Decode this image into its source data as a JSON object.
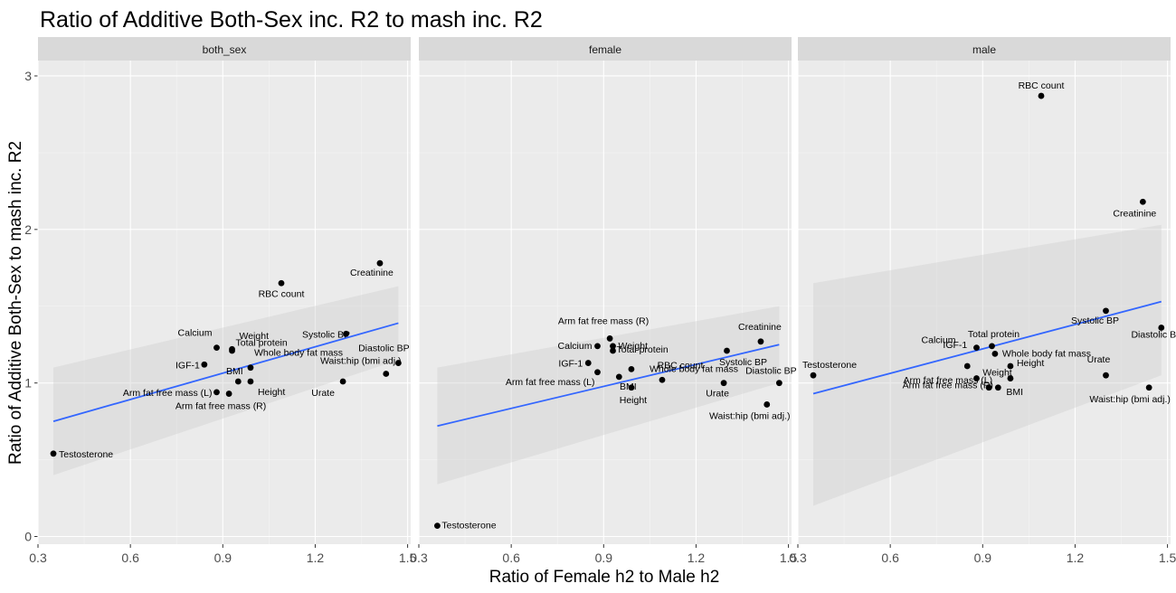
{
  "chart_data": {
    "type": "scatter",
    "title": "Ratio of Additive Both-Sex inc. R2 to mash inc. R2",
    "xlabel": "Ratio of Female h2 to Male h2",
    "ylabel": "Ratio of Additive Both-Sex to mash inc. R2",
    "xlim": [
      0.3,
      1.51
    ],
    "ylim": [
      -0.05,
      3.1
    ],
    "x_ticks": [
      0.3,
      0.6,
      0.9,
      1.2,
      1.5
    ],
    "x_tick_labels": [
      "0.3",
      "0.6",
      "0.9",
      "1.2",
      "1.5"
    ],
    "y_ticks": [
      0,
      1,
      2,
      3
    ],
    "y_tick_labels": [
      "0",
      "1",
      "2",
      "3"
    ],
    "grid": true,
    "legend": "none",
    "point_color": "#000000",
    "smooth_color": "#3366ff",
    "band_color": "#cccccc",
    "facets": [
      {
        "label": "both_sex",
        "points": [
          {
            "name": "Testosterone",
            "x": 0.35,
            "y": 0.54
          },
          {
            "name": "Arm fat free mass (L)",
            "x": 0.88,
            "y": 0.94
          },
          {
            "name": "Arm fat free mass (R)",
            "x": 0.92,
            "y": 0.93
          },
          {
            "name": "BMI",
            "x": 0.95,
            "y": 1.01
          },
          {
            "name": "Height",
            "x": 0.99,
            "y": 1.01
          },
          {
            "name": "IGF-1",
            "x": 0.84,
            "y": 1.12
          },
          {
            "name": "Calcium",
            "x": 0.88,
            "y": 1.23
          },
          {
            "name": "Total protein",
            "x": 0.93,
            "y": 1.22
          },
          {
            "name": "Weight",
            "x": 0.93,
            "y": 1.21
          },
          {
            "name": "Whole body fat mass",
            "x": 0.99,
            "y": 1.1
          },
          {
            "name": "RBC count",
            "x": 1.09,
            "y": 1.65
          },
          {
            "name": "Creatinine",
            "x": 1.41,
            "y": 1.78
          },
          {
            "name": "Systolic BP",
            "x": 1.3,
            "y": 1.32
          },
          {
            "name": "Urate",
            "x": 1.29,
            "y": 1.01
          },
          {
            "name": "Waist:hip (bmi adj.)",
            "x": 1.43,
            "y": 1.06
          },
          {
            "name": "Diastolic BP",
            "x": 1.47,
            "y": 1.13
          }
        ],
        "smooth": {
          "x": [
            0.35,
            1.47
          ],
          "y": [
            0.75,
            1.39
          ],
          "band_lo": [
            0.4,
            1.15
          ],
          "band_hi": [
            1.1,
            1.63
          ]
        }
      },
      {
        "label": "female",
        "points": [
          {
            "name": "Testosterone",
            "x": 0.36,
            "y": 0.07
          },
          {
            "name": "Arm fat free mass (R)",
            "x": 0.92,
            "y": 1.29
          },
          {
            "name": "Calcium",
            "x": 0.88,
            "y": 1.24
          },
          {
            "name": "Weight",
            "x": 0.93,
            "y": 1.24
          },
          {
            "name": "Whole body fat mass",
            "x": 0.99,
            "y": 1.09
          },
          {
            "name": "Total protein",
            "x": 0.93,
            "y": 1.21
          },
          {
            "name": "IGF-1",
            "x": 0.85,
            "y": 1.13
          },
          {
            "name": "Arm fat free mass (L)",
            "x": 0.88,
            "y": 1.07
          },
          {
            "name": "BMI",
            "x": 0.95,
            "y": 1.04
          },
          {
            "name": "Height",
            "x": 0.99,
            "y": 0.97
          },
          {
            "name": "RBC count",
            "x": 1.09,
            "y": 1.02
          },
          {
            "name": "Creatinine",
            "x": 1.41,
            "y": 1.27
          },
          {
            "name": "Systolic BP",
            "x": 1.3,
            "y": 1.21
          },
          {
            "name": "Diastolic BP",
            "x": 1.47,
            "y": 1.0
          },
          {
            "name": "Urate",
            "x": 1.29,
            "y": 1.0
          },
          {
            "name": "Waist:hip (bmi adj.)",
            "x": 1.43,
            "y": 0.86
          }
        ],
        "smooth": {
          "x": [
            0.36,
            1.47
          ],
          "y": [
            0.72,
            1.25
          ],
          "band_lo": [
            0.34,
            1.0
          ],
          "band_hi": [
            1.1,
            1.5
          ]
        }
      },
      {
        "label": "male",
        "points": [
          {
            "name": "Testosterone",
            "x": 0.35,
            "y": 1.05
          },
          {
            "name": "RBC count",
            "x": 1.09,
            "y": 2.87
          },
          {
            "name": "Creatinine",
            "x": 1.42,
            "y": 2.18
          },
          {
            "name": "Systolic BP",
            "x": 1.3,
            "y": 1.47
          },
          {
            "name": "Diastolic BP",
            "x": 1.48,
            "y": 1.36
          },
          {
            "name": "Calcium",
            "x": 0.88,
            "y": 1.23
          },
          {
            "name": "Total protein",
            "x": 0.93,
            "y": 1.24
          },
          {
            "name": "Whole body fat mass",
            "x": 0.94,
            "y": 1.19
          },
          {
            "name": "IGF-1",
            "x": 0.85,
            "y": 1.11
          },
          {
            "name": "Weight",
            "x": 0.88,
            "y": 1.03
          },
          {
            "name": "Height",
            "x": 0.99,
            "y": 1.11
          },
          {
            "name": "Arm fat free mass (L)",
            "x": 0.92,
            "y": 0.97
          },
          {
            "name": "BMI",
            "x": 0.95,
            "y": 0.97
          },
          {
            "name": "Arm fat free mass (R)",
            "x": 0.99,
            "y": 1.03
          },
          {
            "name": "Urate",
            "x": 1.3,
            "y": 1.05
          },
          {
            "name": "Waist:hip (bmi adj.)",
            "x": 1.44,
            "y": 0.97
          }
        ],
        "smooth": {
          "x": [
            0.35,
            1.48
          ],
          "y": [
            0.93,
            1.53
          ],
          "band_lo": [
            0.2,
            1.05
          ],
          "band_hi": [
            1.65,
            2.03
          ]
        }
      }
    ]
  }
}
